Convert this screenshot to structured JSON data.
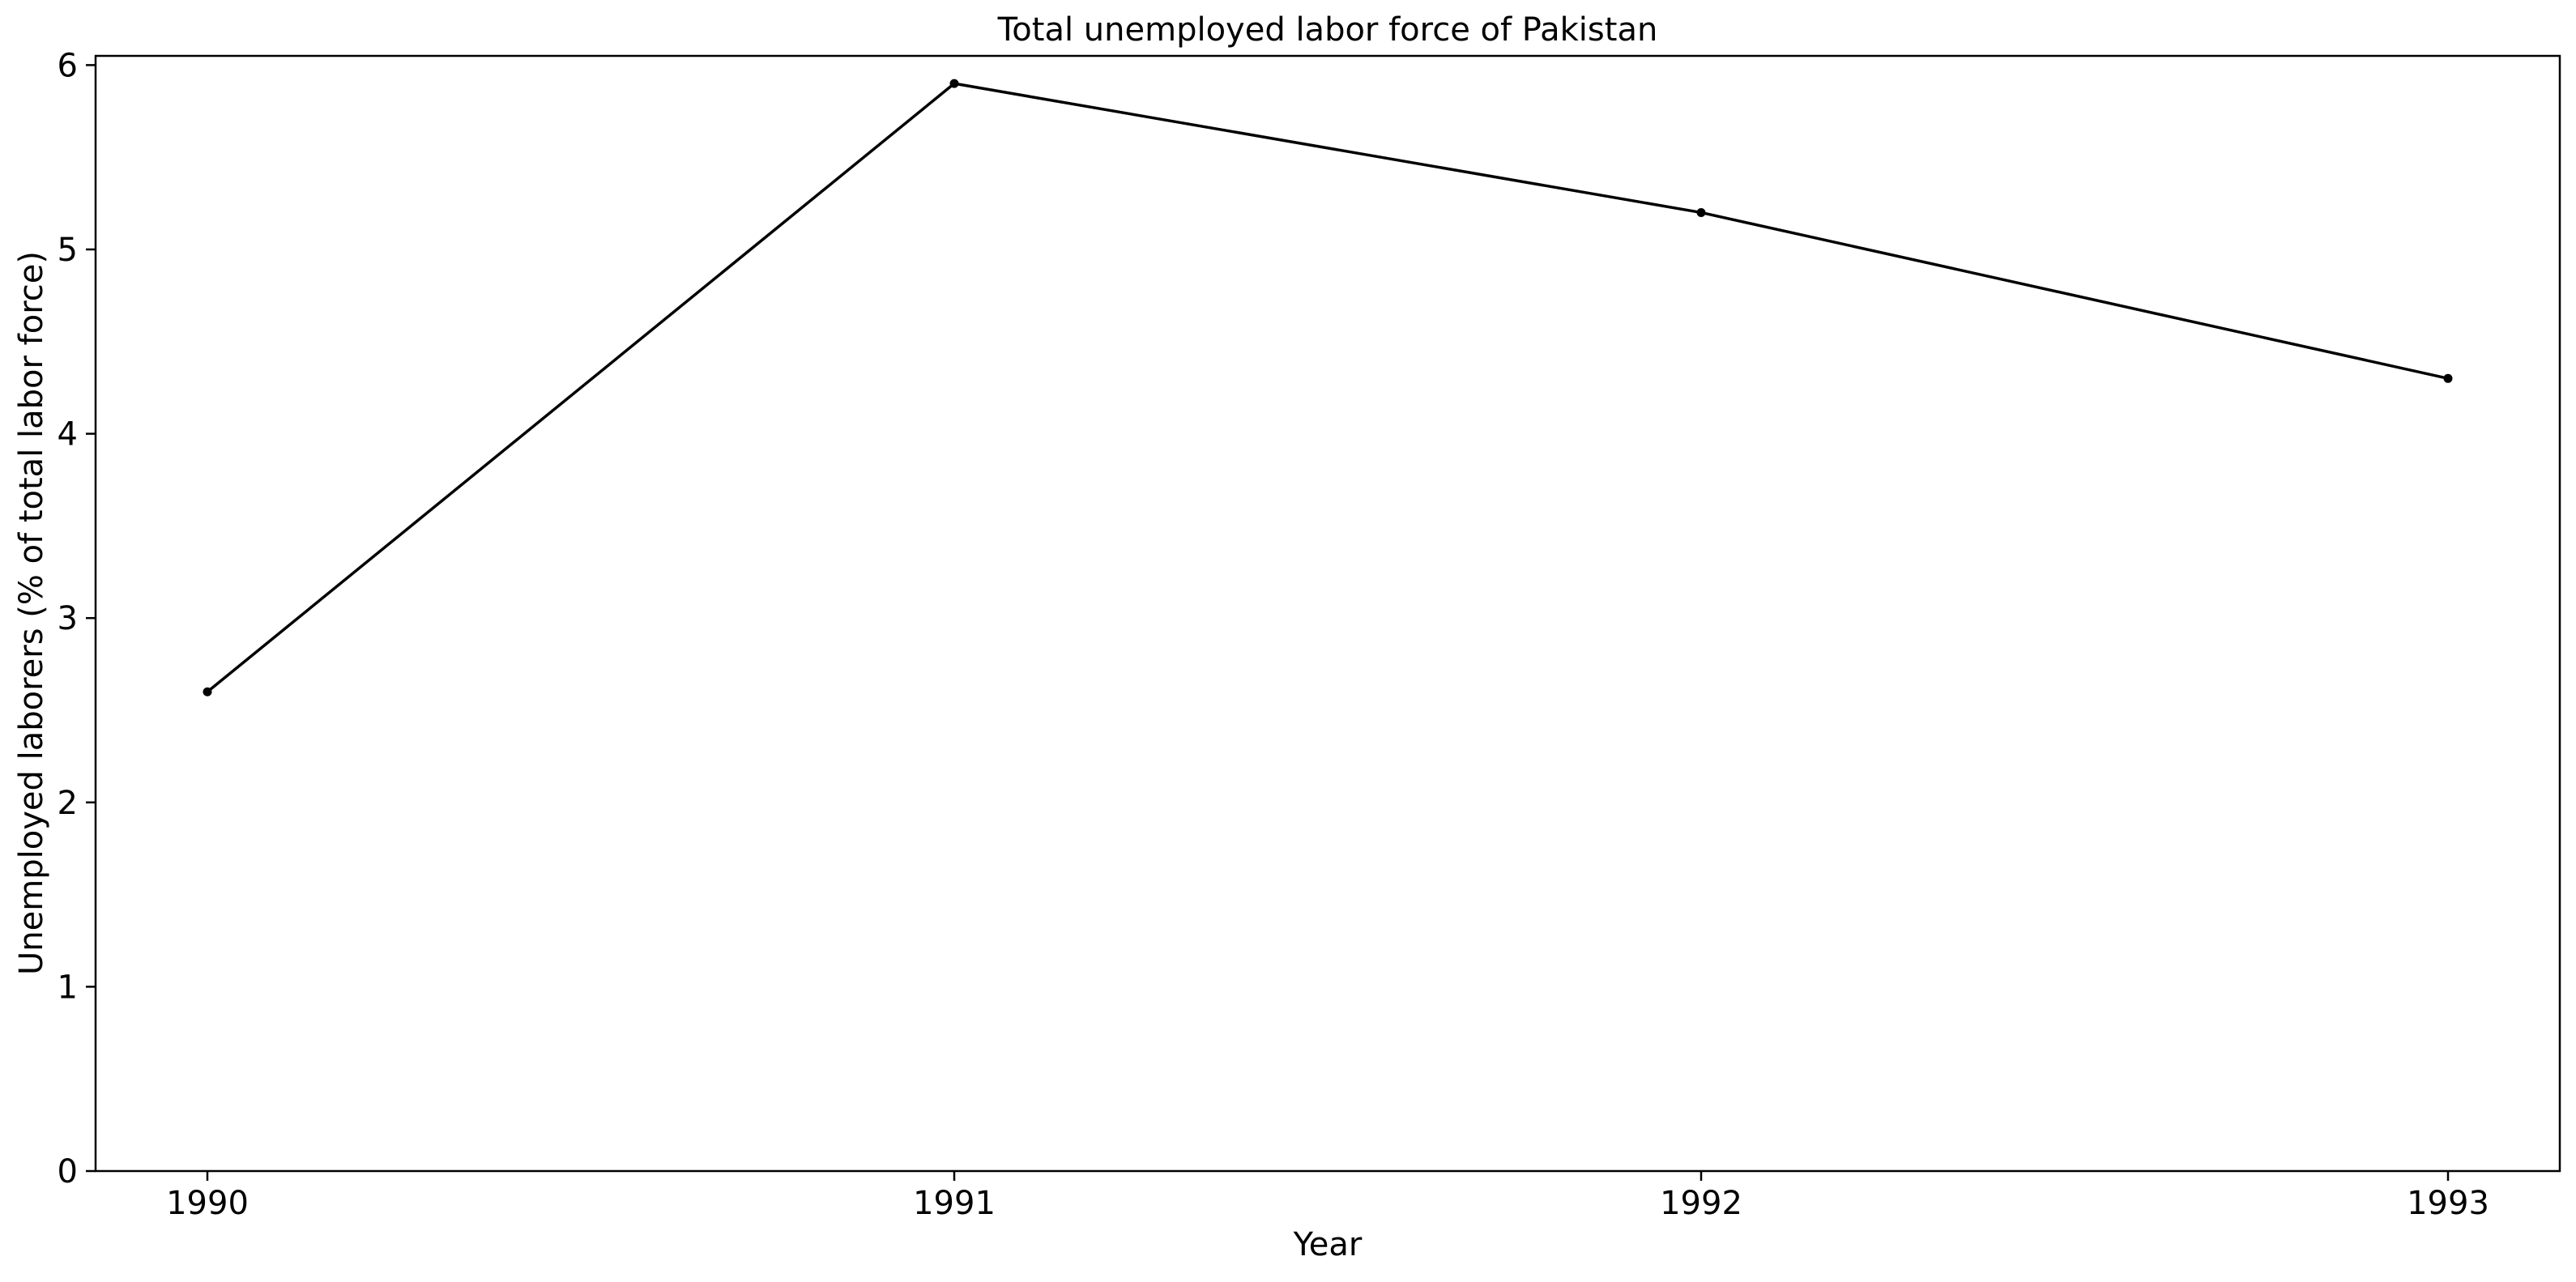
{
  "chart_data": {
    "type": "line",
    "title": "Total unemployed labor force of Pakistan",
    "xlabel": "Year",
    "ylabel": "Unemployed laborers (% of total labor force)",
    "x": [
      "1990",
      "1991",
      "1992",
      "1993"
    ],
    "series": [
      {
        "values": [
          2.6,
          5.9,
          5.2,
          4.3
        ],
        "color": "#000000",
        "marker": "dot"
      }
    ],
    "ylim": [
      0,
      6.05
    ],
    "yticks": [
      "0",
      "1",
      "2",
      "3",
      "4",
      "5",
      "6"
    ],
    "xticks": [
      "1990",
      "1991",
      "1992",
      "1993"
    ],
    "grid": false,
    "legend": "none"
  }
}
